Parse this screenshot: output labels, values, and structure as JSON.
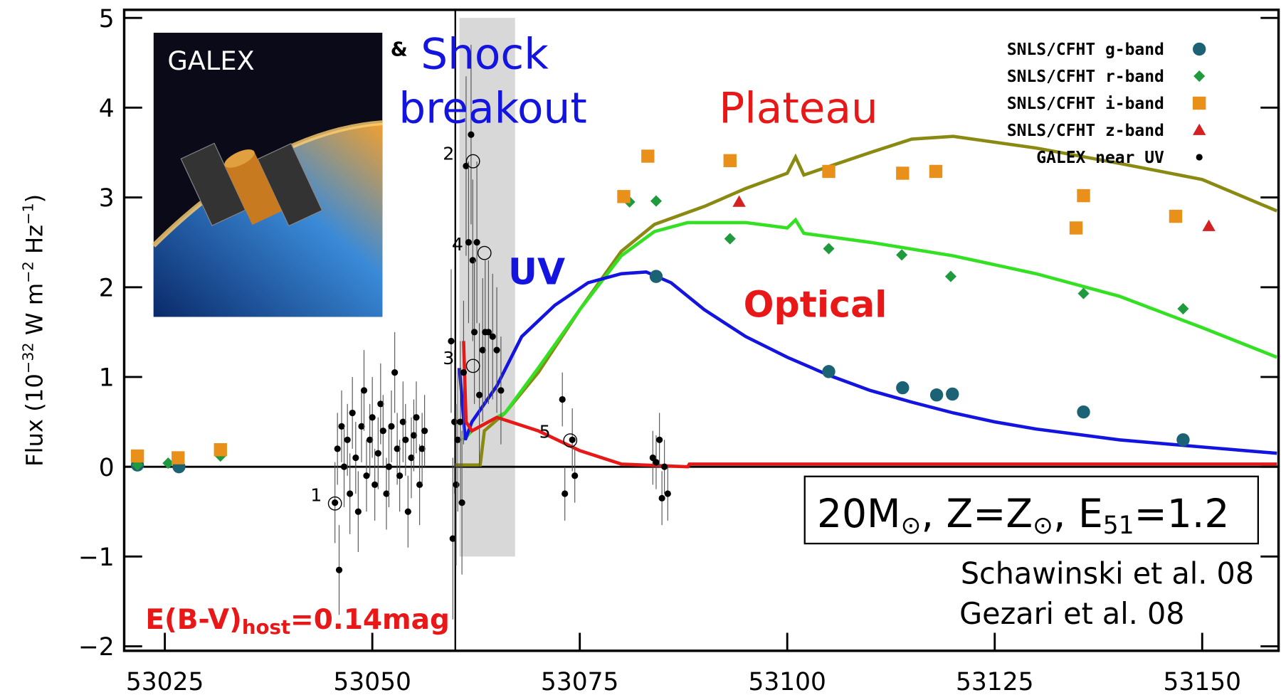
{
  "chart_data": {
    "type": "scatter",
    "y_label": [
      "Flux (10",
      "−32",
      " W m",
      "−2",
      " Hz",
      "−1",
      ")"
    ],
    "xlim": [
      53020.1,
      53159.2
    ],
    "ylim": [
      -2.05,
      5.09
    ],
    "xticks": [
      53025,
      53050,
      53075,
      53100,
      53125,
      53150
    ],
    "yticks": [
      {
        "value": -2,
        "label": "−2"
      },
      {
        "value": -1,
        "label": "−1"
      },
      0,
      1,
      2,
      3,
      4,
      5
    ],
    "legend": "upper right",
    "series": [
      {
        "name": "SNLS/CFHT g-band",
        "color": "#1b6274",
        "marker": "circle",
        "x": [
          53021.7,
          53026.7,
          53084.2,
          53105,
          53113.9,
          53118,
          53119.9,
          53135.7,
          53147.7
        ],
        "values": [
          0.02,
          0.0,
          2.12,
          1.06,
          0.88,
          0.8,
          0.81,
          0.61,
          0.3
        ]
      },
      {
        "name": "SNLS/CFHT r-band",
        "color": "#1f9a3c",
        "marker": "diamond",
        "x": [
          53021.7,
          53025.4,
          53031.7,
          53081,
          53084.2,
          53093.1,
          53105,
          53113.8,
          53119.7,
          53135.7,
          53147.7
        ],
        "values": [
          0.02,
          0.04,
          0.12,
          2.95,
          2.96,
          2.54,
          2.43,
          2.36,
          2.12,
          1.93,
          1.76
        ]
      },
      {
        "name": "SNLS/CFHT i-band",
        "color": "#e8901a",
        "marker": "square",
        "x": [
          53021.7,
          53026.6,
          53031.7,
          53080.3,
          53083.2,
          53093.1,
          53105,
          53113.9,
          53117.9,
          53134.8,
          53135.7,
          53146.8
        ],
        "values": [
          0.12,
          0.1,
          0.19,
          3.01,
          3.46,
          3.41,
          3.29,
          3.27,
          3.29,
          2.66,
          3.02,
          2.79
        ]
      },
      {
        "name": "SNLS/CFHT z-band",
        "color": "#d42020",
        "marker": "triangle",
        "x": [
          53094.2,
          53150.8
        ],
        "values": [
          2.95,
          2.68
        ]
      },
      {
        "name": "GALEX near UV",
        "color": "#000000",
        "marker": "dot",
        "x": [
          53045.5,
          53045.8,
          53046.0,
          53046.3,
          53046.6,
          53047.0,
          53047.3,
          53047.6,
          53048.0,
          53048.3,
          53048.7,
          53049.0,
          53049.3,
          53049.7,
          53050.0,
          53050.3,
          53050.7,
          53051.0,
          53051.3,
          53051.7,
          53052.0,
          53052.3,
          53052.7,
          53053.0,
          53053.3,
          53053.7,
          53054.0,
          53054.3,
          53054.7,
          53055.0,
          53055.3,
          53055.7,
          53056.0,
          53056.3,
          53059.5,
          53059.7,
          53059.9,
          53060.1,
          53060.3,
          53060.6,
          53060.8,
          53061.0,
          53061.3,
          53061.6,
          53061.9,
          53062.1,
          53062.3,
          53062.6,
          53062.9,
          53063.3,
          53063.6,
          53064.0,
          53064.5,
          53065.0,
          53065.5,
          53072.9,
          53073.2,
          53074.1,
          53074.4,
          53083.8,
          53084.2,
          53084.6,
          53084.9,
          53085.2,
          53085.6
        ],
        "values": [
          -0.4,
          0.2,
          -1.15,
          0.45,
          0.0,
          0.3,
          -0.3,
          0.6,
          0.1,
          -0.5,
          0.45,
          0.85,
          -0.1,
          0.3,
          0.55,
          -0.2,
          0.15,
          0.7,
          0.4,
          -0.3,
          0.0,
          0.45,
          1.05,
          0.2,
          -0.1,
          0.5,
          0.3,
          -0.5,
          0.1,
          0.35,
          0.55,
          -0.2,
          0.2,
          0.4,
          1.4,
          -0.8,
          0.5,
          -0.2,
          0.3,
          0.5,
          -0.4,
          1.05,
          3.35,
          2.5,
          3.7,
          2.3,
          1.5,
          2.5,
          0.8,
          1.3,
          1.5,
          1.5,
          1.45,
          1.3,
          0.85,
          0.75,
          -0.3,
          0.3,
          -0.1,
          0.1,
          0.05,
          0.3,
          -0.35,
          0.0,
          -0.3
        ],
        "errors": [
          0.45,
          0.4,
          0.5,
          0.4,
          0.45,
          0.4,
          0.45,
          0.4,
          0.4,
          0.45,
          0.4,
          0.45,
          0.4,
          0.4,
          0.45,
          0.4,
          0.4,
          0.45,
          0.4,
          0.4,
          0.45,
          0.4,
          0.45,
          0.4,
          0.4,
          0.45,
          0.4,
          0.4,
          0.45,
          0.4,
          0.4,
          0.45,
          0.4,
          0.4,
          0.8,
          0.9,
          0.8,
          0.9,
          0.8,
          0.9,
          0.8,
          0.8,
          1.0,
          0.9,
          1.0,
          0.9,
          0.8,
          0.9,
          0.8,
          0.8,
          0.8,
          0.8,
          0.7,
          0.7,
          0.6,
          0.3,
          0.3,
          0.35,
          0.3,
          0.3,
          0.3,
          0.3,
          0.3,
          0.3,
          0.3
        ]
      }
    ],
    "models": [
      {
        "color": "#8a8a12",
        "x": [
          53060,
          53063,
          53063.5,
          53066,
          53070,
          53075,
          53080,
          53084,
          53090,
          53095,
          53100,
          53101,
          53102,
          53110,
          53115,
          53120,
          53130,
          53140,
          53150,
          53159
        ],
        "y": [
          0.02,
          0.02,
          0.4,
          0.6,
          1.05,
          1.75,
          2.4,
          2.7,
          2.9,
          3.1,
          3.27,
          3.45,
          3.25,
          3.5,
          3.65,
          3.68,
          3.55,
          3.38,
          3.2,
          2.85
        ]
      },
      {
        "color": "#33e022",
        "x": [
          53061,
          53062,
          53066,
          53070,
          53075,
          53080,
          53084,
          53088,
          53095,
          53100,
          53101,
          53102,
          53110,
          53120,
          53130,
          53140,
          53150,
          53159
        ],
        "y": [
          0.3,
          0.4,
          0.6,
          1.1,
          1.75,
          2.35,
          2.62,
          2.72,
          2.72,
          2.66,
          2.75,
          2.6,
          2.5,
          2.35,
          2.15,
          1.9,
          1.55,
          1.22
        ]
      },
      {
        "color": "#1414e0",
        "x": [
          53060.5,
          53061.2,
          53062,
          53065,
          53068,
          53072,
          53076,
          53080,
          53083,
          53086,
          53090,
          53095,
          53100,
          53105,
          53110,
          53115,
          53120,
          53125,
          53130,
          53140,
          53150,
          53159
        ],
        "y": [
          1.1,
          0.3,
          0.5,
          0.9,
          1.45,
          1.8,
          2.05,
          2.15,
          2.17,
          2.05,
          1.75,
          1.45,
          1.22,
          1.02,
          0.85,
          0.72,
          0.6,
          0.5,
          0.42,
          0.3,
          0.22,
          0.15
        ]
      },
      {
        "color": "#e81818",
        "x": [
          53061,
          53061.3,
          53062,
          53065,
          53070,
          53075,
          53080,
          53088,
          53088.2,
          53159
        ],
        "y": [
          1.4,
          0.5,
          0.4,
          0.55,
          0.4,
          0.18,
          0.03,
          0.0,
          0.03,
          0.03
        ]
      }
    ],
    "shaded_region": {
      "x": [
        53060.5,
        53067.2
      ],
      "y": [
        -1,
        5
      ]
    },
    "point_labels": [
      "1",
      "2",
      "3",
      "4",
      "5"
    ],
    "inset_label": "GALEX",
    "annotations": {
      "amp": "&",
      "shock": [
        "Shock",
        "breakout"
      ],
      "plateau": "Plateau",
      "uv": "UV",
      "optical": "Optical",
      "model": [
        "20M",
        "⊙",
        ", Z=Z",
        "⊙",
        ", E",
        "51",
        "=1.2"
      ],
      "refs": [
        "Schawinski et al. 08",
        "Gezari et al. 08"
      ],
      "ebv": [
        "E(B-V)",
        "host",
        "=0.14mag"
      ]
    }
  }
}
